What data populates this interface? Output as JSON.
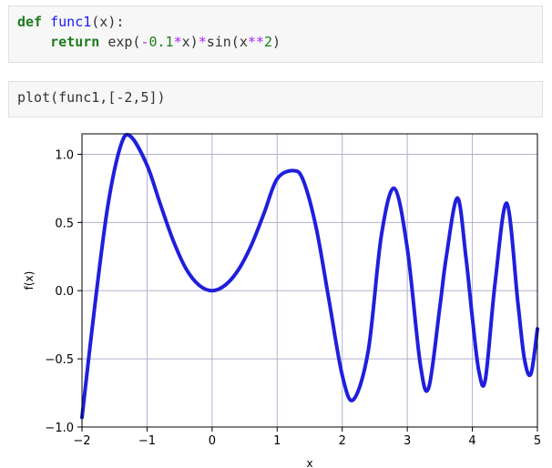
{
  "notebook": {
    "cells": [
      {
        "lines": [
          [
            {
              "cls": "kw",
              "text": "def"
            },
            {
              "cls": "",
              "text": " "
            },
            {
              "cls": "fn",
              "text": "func1"
            },
            {
              "cls": "",
              "text": "(x):"
            }
          ],
          [
            {
              "cls": "",
              "text": "    "
            },
            {
              "cls": "kw",
              "text": "return"
            },
            {
              "cls": "",
              "text": " exp("
            },
            {
              "cls": "op",
              "text": "-"
            },
            {
              "cls": "num",
              "text": "0.1"
            },
            {
              "cls": "op",
              "text": "*"
            },
            {
              "cls": "",
              "text": "x)"
            },
            {
              "cls": "op",
              "text": "*"
            },
            {
              "cls": "",
              "text": "sin(x"
            },
            {
              "cls": "op",
              "text": "**"
            },
            {
              "cls": "num",
              "text": "2"
            },
            {
              "cls": "",
              "text": ")"
            }
          ]
        ]
      },
      {
        "lines": [
          [
            {
              "cls": "",
              "text": "plot(func1,[-2,5])"
            }
          ]
        ]
      }
    ]
  },
  "chart_data": {
    "type": "line",
    "title": "",
    "xlabel": "x",
    "ylabel": "f(x)",
    "xlim": [
      -2,
      5
    ],
    "ylim": [
      -1.0,
      1.15
    ],
    "xticks": [
      -2,
      -1,
      0,
      1,
      2,
      3,
      4,
      5
    ],
    "xtick_labels": [
      "−2",
      "−1",
      "0",
      "1",
      "2",
      "3",
      "4",
      "5"
    ],
    "yticks": [
      -1.0,
      -0.5,
      0.0,
      0.5,
      1.0
    ],
    "ytick_labels": [
      "−1.0",
      "−0.5",
      "0.0",
      "0.5",
      "1.0"
    ],
    "grid": true,
    "line_color": "#1f1fdd",
    "grid_color": "#b0b0d0",
    "series": [
      {
        "x": [
          -2.0,
          -1.8,
          -1.6,
          -1.4,
          -1.25,
          -1.0,
          -0.8,
          -0.6,
          -0.4,
          -0.2,
          0.0,
          0.2,
          0.4,
          0.6,
          0.8,
          1.0,
          1.25,
          1.4,
          1.6,
          1.8,
          2.0,
          2.17,
          2.4,
          2.6,
          2.8,
          3.0,
          3.2,
          3.33,
          3.5,
          3.6,
          3.77,
          3.9,
          4.0,
          4.1,
          4.2,
          4.35,
          4.53,
          4.7,
          4.8,
          4.9,
          5.0
        ],
        "y": [
          -0.93,
          -0.1,
          0.63,
          1.07,
          1.13,
          0.92,
          0.64,
          0.37,
          0.16,
          0.04,
          0.0,
          0.04,
          0.15,
          0.33,
          0.57,
          0.82,
          0.88,
          0.81,
          0.46,
          -0.08,
          -0.62,
          -0.8,
          -0.44,
          0.4,
          0.75,
          0.31,
          -0.54,
          -0.71,
          -0.12,
          0.25,
          0.68,
          0.25,
          -0.2,
          -0.59,
          -0.65,
          0.06,
          0.64,
          -0.09,
          -0.5,
          -0.61,
          -0.28
        ]
      }
    ]
  }
}
